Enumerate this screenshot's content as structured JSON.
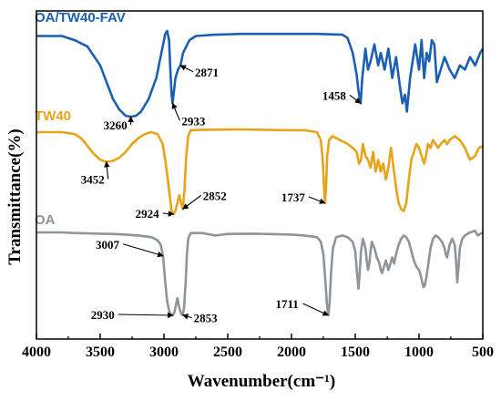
{
  "chart_data": {
    "type": "line",
    "title": "",
    "xlabel": "Wavenumber(cm⁻¹)",
    "ylabel": "Transmittance(%)",
    "xlim": [
      4000,
      500
    ],
    "x_reversed": true,
    "x_ticks": [
      "4000",
      "3500",
      "3000",
      "2500",
      "2000",
      "1500",
      "1000",
      "500"
    ],
    "y_ticks_shown": false,
    "grid": false,
    "legend": "inline-labels-top-left",
    "series": [
      {
        "name": "OA/TW40-FAV",
        "color": "#1a5fb4",
        "points": [
          [
            4000,
            96
          ],
          [
            3800,
            96
          ],
          [
            3700,
            95
          ],
          [
            3600,
            93.5
          ],
          [
            3500,
            89
          ],
          [
            3450,
            85
          ],
          [
            3400,
            81
          ],
          [
            3350,
            78.5
          ],
          [
            3300,
            77
          ],
          [
            3260,
            76.8
          ],
          [
            3220,
            77
          ],
          [
            3180,
            78
          ],
          [
            3120,
            81
          ],
          [
            3060,
            86
          ],
          [
            3020,
            92
          ],
          [
            2990,
            96.5
          ],
          [
            2975,
            97.2
          ],
          [
            2960,
            95
          ],
          [
            2950,
            88
          ],
          [
            2940,
            82
          ],
          [
            2933,
            80
          ],
          [
            2925,
            82
          ],
          [
            2910,
            86
          ],
          [
            2890,
            88
          ],
          [
            2871,
            89
          ],
          [
            2850,
            92
          ],
          [
            2800,
            95
          ],
          [
            2750,
            96
          ],
          [
            2600,
            96.3
          ],
          [
            2400,
            96.5
          ],
          [
            2200,
            96.5
          ],
          [
            2000,
            96.5
          ],
          [
            1800,
            96.5
          ],
          [
            1600,
            96.3
          ],
          [
            1560,
            95.5
          ],
          [
            1520,
            92
          ],
          [
            1490,
            87
          ],
          [
            1475,
            83
          ],
          [
            1458,
            80
          ],
          [
            1445,
            86
          ],
          [
            1420,
            93
          ],
          [
            1400,
            88
          ],
          [
            1380,
            90
          ],
          [
            1350,
            94
          ],
          [
            1320,
            89
          ],
          [
            1300,
            92
          ],
          [
            1270,
            88
          ],
          [
            1240,
            93
          ],
          [
            1210,
            86
          ],
          [
            1180,
            91
          ],
          [
            1150,
            84
          ],
          [
            1130,
            80
          ],
          [
            1110,
            82
          ],
          [
            1095,
            78
          ],
          [
            1070,
            86
          ],
          [
            1050,
            90
          ],
          [
            1030,
            94
          ],
          [
            1000,
            88
          ],
          [
            980,
            95
          ],
          [
            960,
            86
          ],
          [
            940,
            92
          ],
          [
            920,
            90
          ],
          [
            900,
            95
          ],
          [
            880,
            94
          ],
          [
            860,
            85
          ],
          [
            840,
            87
          ],
          [
            800,
            91
          ],
          [
            760,
            88
          ],
          [
            720,
            86
          ],
          [
            680,
            89
          ],
          [
            640,
            88
          ],
          [
            600,
            91
          ],
          [
            560,
            89
          ],
          [
            520,
            92
          ],
          [
            500,
            93
          ]
        ]
      },
      {
        "name": "TW40",
        "color": "#e8a319",
        "points": [
          [
            4000,
            62
          ],
          [
            3800,
            62
          ],
          [
            3700,
            61.5
          ],
          [
            3650,
            60.5
          ],
          [
            3600,
            58.5
          ],
          [
            3550,
            56.5
          ],
          [
            3500,
            55
          ],
          [
            3452,
            54.5
          ],
          [
            3400,
            54.7
          ],
          [
            3350,
            55.5
          ],
          [
            3300,
            57
          ],
          [
            3250,
            59
          ],
          [
            3200,
            60.5
          ],
          [
            3150,
            61.5
          ],
          [
            3100,
            62
          ],
          [
            3050,
            61.5
          ],
          [
            3010,
            59
          ],
          [
            2990,
            55
          ],
          [
            2970,
            50
          ],
          [
            2955,
            46
          ],
          [
            2940,
            42
          ],
          [
            2930,
            41.5
          ],
          [
            2924,
            41.2
          ],
          [
            2910,
            42
          ],
          [
            2895,
            44
          ],
          [
            2880,
            46
          ],
          [
            2865,
            44
          ],
          [
            2852,
            42.5
          ],
          [
            2840,
            47
          ],
          [
            2825,
            56
          ],
          [
            2810,
            61
          ],
          [
            2790,
            62.5
          ],
          [
            2700,
            62.6
          ],
          [
            2400,
            62.7
          ],
          [
            2000,
            62.5
          ],
          [
            1900,
            62.5
          ],
          [
            1800,
            62
          ],
          [
            1770,
            60
          ],
          [
            1755,
            55
          ],
          [
            1745,
            48
          ],
          [
            1737,
            44
          ],
          [
            1729,
            48
          ],
          [
            1720,
            56
          ],
          [
            1705,
            60
          ],
          [
            1680,
            61
          ],
          [
            1620,
            60
          ],
          [
            1560,
            59
          ],
          [
            1520,
            58
          ],
          [
            1490,
            57
          ],
          [
            1470,
            54
          ],
          [
            1455,
            55
          ],
          [
            1440,
            59
          ],
          [
            1420,
            56
          ],
          [
            1400,
            55
          ],
          [
            1380,
            53
          ],
          [
            1360,
            57
          ],
          [
            1340,
            52
          ],
          [
            1320,
            55
          ],
          [
            1300,
            52
          ],
          [
            1280,
            54
          ],
          [
            1260,
            50
          ],
          [
            1240,
            53
          ],
          [
            1220,
            58
          ],
          [
            1200,
            53
          ],
          [
            1180,
            48
          ],
          [
            1160,
            44
          ],
          [
            1140,
            42.5
          ],
          [
            1120,
            42
          ],
          [
            1100,
            44
          ],
          [
            1080,
            50
          ],
          [
            1060,
            55
          ],
          [
            1040,
            57
          ],
          [
            1020,
            59
          ],
          [
            1000,
            58
          ],
          [
            980,
            56
          ],
          [
            960,
            54
          ],
          [
            945,
            56
          ],
          [
            930,
            59
          ],
          [
            910,
            58
          ],
          [
            890,
            60
          ],
          [
            870,
            59
          ],
          [
            850,
            58
          ],
          [
            830,
            59
          ],
          [
            800,
            60
          ],
          [
            780,
            59
          ],
          [
            760,
            60
          ],
          [
            720,
            61
          ],
          [
            680,
            60
          ],
          [
            640,
            58
          ],
          [
            600,
            55
          ],
          [
            560,
            56
          ],
          [
            530,
            58
          ],
          [
            500,
            58.5
          ]
        ]
      },
      {
        "name": "OA",
        "color": "#8e9499",
        "points": [
          [
            4000,
            33
          ],
          [
            3800,
            33
          ],
          [
            3700,
            32.8
          ],
          [
            3600,
            32.7
          ],
          [
            3500,
            32.6
          ],
          [
            3400,
            32.5
          ],
          [
            3300,
            32.3
          ],
          [
            3200,
            32
          ],
          [
            3100,
            31.5
          ],
          [
            3050,
            30.5
          ],
          [
            3025,
            29
          ],
          [
            3015,
            27
          ],
          [
            3007,
            25.5
          ],
          [
            3000,
            22
          ],
          [
            2990,
            17
          ],
          [
            2975,
            11
          ],
          [
            2960,
            8
          ],
          [
            2945,
            6.8
          ],
          [
            2930,
            6.5
          ],
          [
            2918,
            7.5
          ],
          [
            2905,
            10
          ],
          [
            2895,
            12
          ],
          [
            2880,
            9
          ],
          [
            2866,
            7
          ],
          [
            2853,
            6.6
          ],
          [
            2842,
            9
          ],
          [
            2830,
            17
          ],
          [
            2820,
            26
          ],
          [
            2810,
            31
          ],
          [
            2790,
            32.8
          ],
          [
            2700,
            32.8
          ],
          [
            2600,
            32
          ],
          [
            2500,
            32.5
          ],
          [
            2300,
            32.6
          ],
          [
            2100,
            32.4
          ],
          [
            2000,
            32.3
          ],
          [
            1900,
            32
          ],
          [
            1800,
            31.5
          ],
          [
            1770,
            30
          ],
          [
            1750,
            26
          ],
          [
            1735,
            18
          ],
          [
            1722,
            10
          ],
          [
            1711,
            6.5
          ],
          [
            1702,
            10
          ],
          [
            1690,
            20
          ],
          [
            1675,
            28
          ],
          [
            1650,
            31.5
          ],
          [
            1600,
            32
          ],
          [
            1560,
            31.5
          ],
          [
            1520,
            30
          ],
          [
            1500,
            27
          ],
          [
            1488,
            21
          ],
          [
            1475,
            15
          ],
          [
            1465,
            20
          ],
          [
            1455,
            27
          ],
          [
            1440,
            31
          ],
          [
            1420,
            28
          ],
          [
            1410,
            24
          ],
          [
            1400,
            21
          ],
          [
            1390,
            23
          ],
          [
            1380,
            27
          ],
          [
            1370,
            30
          ],
          [
            1350,
            28
          ],
          [
            1330,
            25
          ],
          [
            1310,
            23
          ],
          [
            1300,
            21
          ],
          [
            1290,
            20
          ],
          [
            1275,
            22
          ],
          [
            1260,
            24
          ],
          [
            1240,
            21
          ],
          [
            1225,
            23
          ],
          [
            1210,
            25
          ],
          [
            1195,
            23
          ],
          [
            1180,
            26
          ],
          [
            1160,
            29
          ],
          [
            1140,
            31
          ],
          [
            1120,
            32
          ],
          [
            1100,
            31.5
          ],
          [
            1080,
            30
          ],
          [
            1060,
            27
          ],
          [
            1040,
            24
          ],
          [
            1020,
            22
          ],
          [
            1000,
            21
          ],
          [
            985,
            19
          ],
          [
            975,
            17
          ],
          [
            965,
            15.5
          ],
          [
            955,
            16
          ],
          [
            945,
            18
          ],
          [
            930,
            22
          ],
          [
            910,
            28
          ],
          [
            890,
            31
          ],
          [
            870,
            32
          ],
          [
            850,
            31.5
          ],
          [
            820,
            30
          ],
          [
            800,
            28
          ],
          [
            790,
            26
          ],
          [
            780,
            25
          ],
          [
            770,
            27
          ],
          [
            760,
            29
          ],
          [
            740,
            31
          ],
          [
            720,
            29
          ],
          [
            710,
            24
          ],
          [
            700,
            17
          ],
          [
            690,
            22
          ],
          [
            680,
            28
          ],
          [
            660,
            31
          ],
          [
            640,
            32
          ],
          [
            600,
            33
          ],
          [
            560,
            33.5
          ],
          [
            540,
            32
          ],
          [
            520,
            32.5
          ],
          [
            500,
            33
          ]
        ]
      }
    ],
    "annotations": [
      {
        "series": "OA/TW40-FAV",
        "text": "3260",
        "x": 3260,
        "y": 76.8
      },
      {
        "series": "OA/TW40-FAV",
        "text": "2871",
        "x": 2871,
        "y": 89
      },
      {
        "series": "OA/TW40-FAV",
        "text": "2933",
        "x": 2933,
        "y": 80
      },
      {
        "series": "OA/TW40-FAV",
        "text": "1458",
        "x": 1458,
        "y": 80
      },
      {
        "series": "TW40",
        "text": "3452",
        "x": 3452,
        "y": 54.5
      },
      {
        "series": "TW40",
        "text": "2924",
        "x": 2924,
        "y": 41.2
      },
      {
        "series": "TW40",
        "text": "2852",
        "x": 2852,
        "y": 42.5
      },
      {
        "series": "TW40",
        "text": "1737",
        "x": 1737,
        "y": 44
      },
      {
        "series": "OA",
        "text": "3007",
        "x": 3007,
        "y": 25.5
      },
      {
        "series": "OA",
        "text": "2930",
        "x": 2930,
        "y": 6.5
      },
      {
        "series": "OA",
        "text": "2853",
        "x": 2853,
        "y": 6.6
      },
      {
        "series": "OA",
        "text": "1711",
        "x": 1711,
        "y": 6.5
      }
    ]
  }
}
